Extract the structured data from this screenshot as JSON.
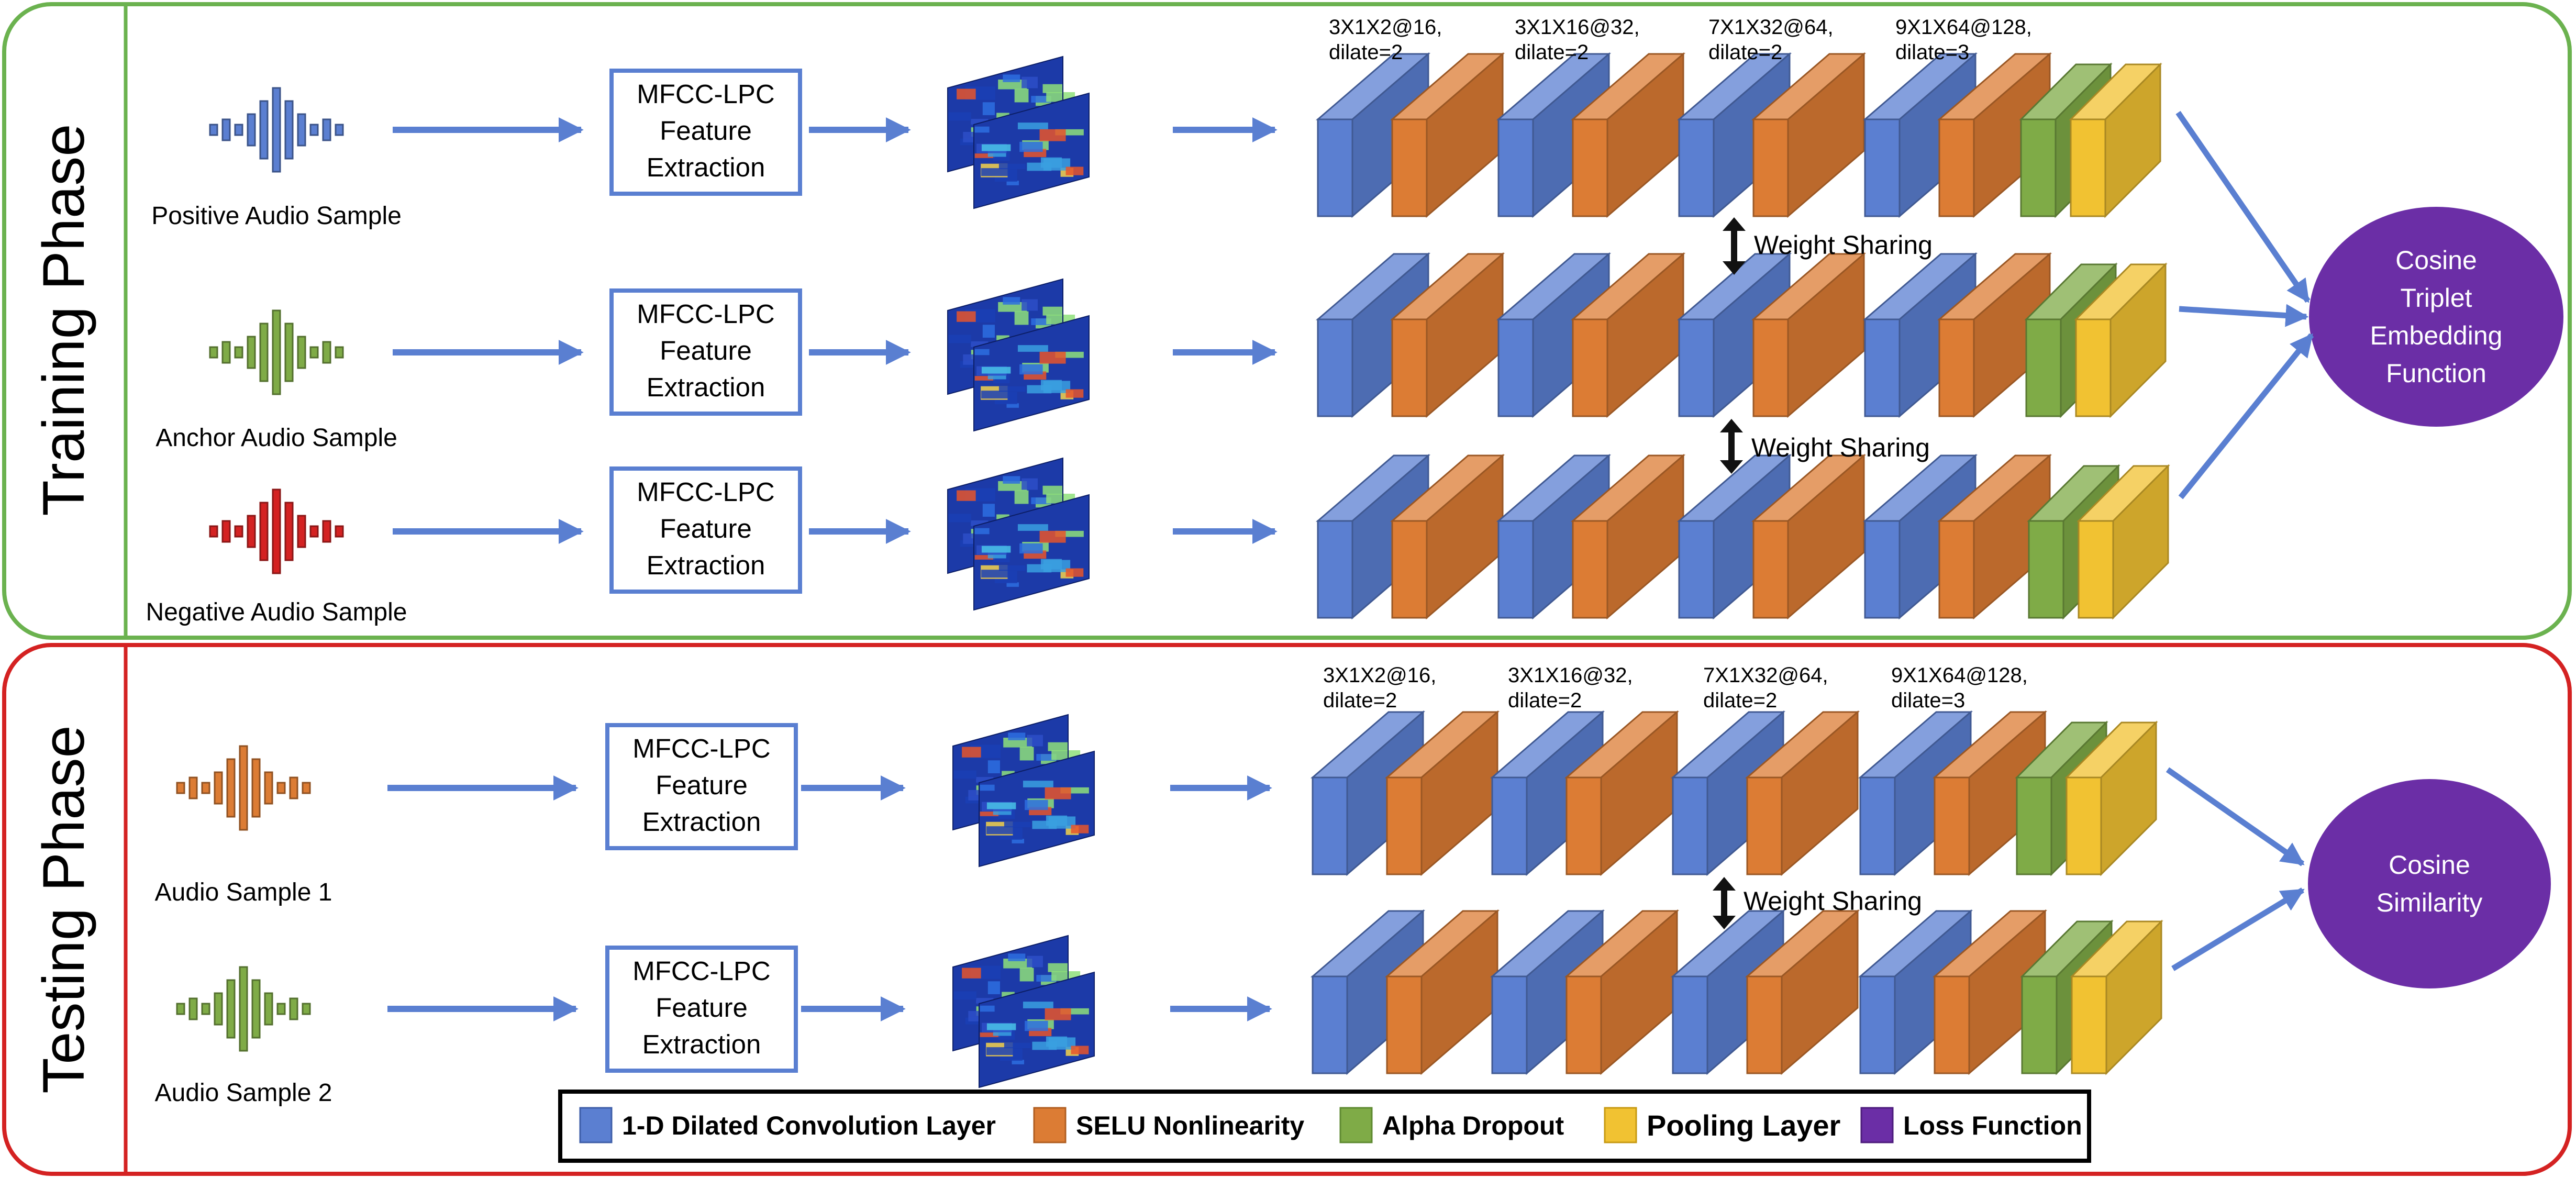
{
  "colors": {
    "training_border": "#6bb24f",
    "testing_border": "#d42222",
    "arrow": "#5a7fd1",
    "conv": "#5b7fd1",
    "selu": "#dc7c34",
    "dropout": "#7fab47",
    "pooling": "#f1c232",
    "loss": "#6b2ea6",
    "wave_positive": "#5b7fd1",
    "wave_anchor": "#7fab47",
    "wave_negative": "#d42222",
    "wave_sample1": "#dc7c34",
    "wave_sample2": "#7fab47"
  },
  "training": {
    "title": "Training Phase",
    "rows": [
      {
        "label": "Positive Audio Sample",
        "feature": [
          "MFCC-LPC",
          "Feature",
          "Extraction"
        ]
      },
      {
        "label": "Anchor Audio Sample",
        "feature": [
          "MFCC-LPC",
          "Feature",
          "Extraction"
        ]
      },
      {
        "label": "Negative Audio Sample",
        "feature": [
          "MFCC-LPC",
          "Feature",
          "Extraction"
        ]
      }
    ],
    "layer_specs": [
      [
        "3X1X2@16,",
        "dilate=2"
      ],
      [
        "3X1X16@32,",
        "dilate=2"
      ],
      [
        "7X1X32@64,",
        "dilate=2"
      ],
      [
        "9X1X64@128,",
        "dilate=3"
      ]
    ],
    "weight_sharing": [
      "Weight Sharing",
      "Weight Sharing"
    ],
    "loss_box": [
      "Cosine",
      "Triplet",
      "Embedding",
      "Function"
    ]
  },
  "testing": {
    "title": "Testing Phase",
    "rows": [
      {
        "label": "Audio Sample 1",
        "feature": [
          "MFCC-LPC",
          "Feature",
          "Extraction"
        ]
      },
      {
        "label": "Audio Sample 2",
        "feature": [
          "MFCC-LPC",
          "Feature",
          "Extraction"
        ]
      }
    ],
    "layer_specs": [
      [
        "3X1X2@16,",
        "dilate=2"
      ],
      [
        "3X1X16@32,",
        "dilate=2"
      ],
      [
        "7X1X32@64,",
        "dilate=2"
      ],
      [
        "9X1X64@128,",
        "dilate=3"
      ]
    ],
    "weight_sharing": [
      "Weight Sharing"
    ],
    "similarity_box": [
      "Cosine",
      "Similarity"
    ]
  },
  "legend": [
    {
      "label": "1-D Dilated Convolution Layer",
      "color_key": "conv"
    },
    {
      "label": "SELU Nonlinearity",
      "color_key": "selu"
    },
    {
      "label": "Alpha Dropout",
      "color_key": "dropout"
    },
    {
      "label": "Pooling Layer",
      "color_key": "pooling"
    },
    {
      "label": "Loss Function",
      "color_key": "loss"
    }
  ]
}
